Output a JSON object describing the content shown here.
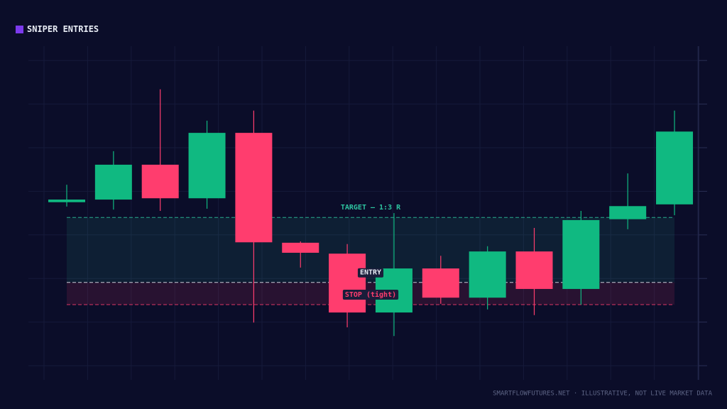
{
  "chart_data": {
    "type": "candlestick",
    "title": "SNIPER ENTRIES",
    "footer": "SMARTFLOWFUTURES.NET · ILLUSTRATIVE, NOT LIVE MARKET DATA",
    "categories": [
      null,
      null,
      null,
      null,
      null,
      null,
      null,
      null,
      null,
      null,
      null,
      null,
      null,
      null
    ],
    "open": [
      4.75,
      4.81,
      5.61,
      4.84,
      6.34,
      3.82,
      3.57,
      2.22,
      3.23,
      2.56,
      3.62,
      2.76,
      4.36,
      4.7
    ],
    "high": [
      5.15,
      5.92,
      7.34,
      6.62,
      6.85,
      3.85,
      3.79,
      4.5,
      3.52,
      3.74,
      4.16,
      4.55,
      5.41,
      6.85
    ],
    "low": [
      4.65,
      4.58,
      4.55,
      4.6,
      1.99,
      3.25,
      1.88,
      1.68,
      2.42,
      2.29,
      2.16,
      2.4,
      4.13,
      4.45
    ],
    "close": [
      4.81,
      5.61,
      4.84,
      6.34,
      3.83,
      3.59,
      2.22,
      3.23,
      2.56,
      3.62,
      2.76,
      4.34,
      4.66,
      6.37
    ],
    "up_color": "#10b981",
    "down_color": "#ff3d6e",
    "ylim": [
      0.5,
      8.5
    ],
    "yticks": [
      1,
      2,
      3,
      4,
      5,
      6,
      7,
      8
    ],
    "grid": true,
    "levels": [
      {
        "label": "TARGET — 1:3 R",
        "value": 4.4,
        "color": "#2ec4a0"
      },
      {
        "label": "ENTRY",
        "value": 2.91,
        "color": "#e8ecf5"
      },
      {
        "label": "STOP (tight)",
        "value": 2.4,
        "color": "#ff3d6e"
      }
    ]
  }
}
